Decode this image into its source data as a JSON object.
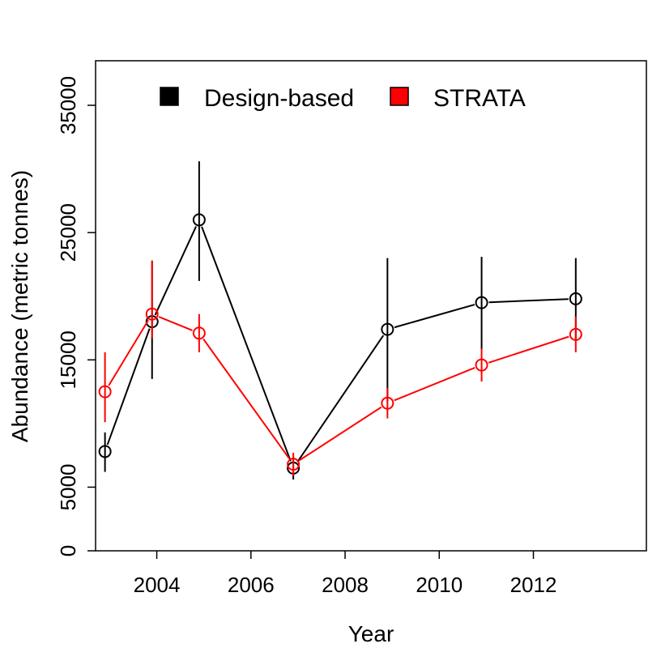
{
  "chart_data": {
    "type": "line",
    "title": "",
    "xlabel": "Year",
    "ylabel": "Abundance (metric tonnes)",
    "xlim": [
      2002.7,
      2014.4
    ],
    "ylim": [
      0,
      38500
    ],
    "x_ticks": [
      2004,
      2006,
      2008,
      2010,
      2012
    ],
    "y_ticks": [
      0,
      5000,
      15000,
      25000,
      35000
    ],
    "grid": false,
    "legend_position": "top",
    "series": [
      {
        "name": "Design-based",
        "color": "#000000",
        "points": [
          {
            "x": 2002.9,
            "y": 7800,
            "lo": 6200,
            "hi": 9300
          },
          {
            "x": 2003.9,
            "y": 18000,
            "lo": 13500,
            "hi": 22800
          },
          {
            "x": 2004.9,
            "y": 26000,
            "lo": 21200,
            "hi": 30600
          },
          {
            "x": 2006.9,
            "y": 6500,
            "lo": 5600,
            "hi": 7400
          },
          {
            "x": 2008.9,
            "y": 17400,
            "lo": 11700,
            "hi": 23000
          },
          {
            "x": 2010.9,
            "y": 19500,
            "lo": 15800,
            "hi": 23100
          },
          {
            "x": 2012.9,
            "y": 19800,
            "lo": 16500,
            "hi": 23000
          }
        ]
      },
      {
        "name": "STRATA",
        "color": "#ff0000",
        "points": [
          {
            "x": 2002.9,
            "y": 12500,
            "lo": 10100,
            "hi": 15600
          },
          {
            "x": 2003.9,
            "y": 18600,
            "lo": 16700,
            "hi": 22800
          },
          {
            "x": 2004.9,
            "y": 17100,
            "lo": 15600,
            "hi": 18600
          },
          {
            "x": 2006.9,
            "y": 6800,
            "lo": 5900,
            "hi": 7700
          },
          {
            "x": 2008.9,
            "y": 11600,
            "lo": 10400,
            "hi": 12800
          },
          {
            "x": 2010.9,
            "y": 14600,
            "lo": 13300,
            "hi": 15900
          },
          {
            "x": 2012.9,
            "y": 17000,
            "lo": 15600,
            "hi": 18400
          }
        ]
      }
    ]
  }
}
